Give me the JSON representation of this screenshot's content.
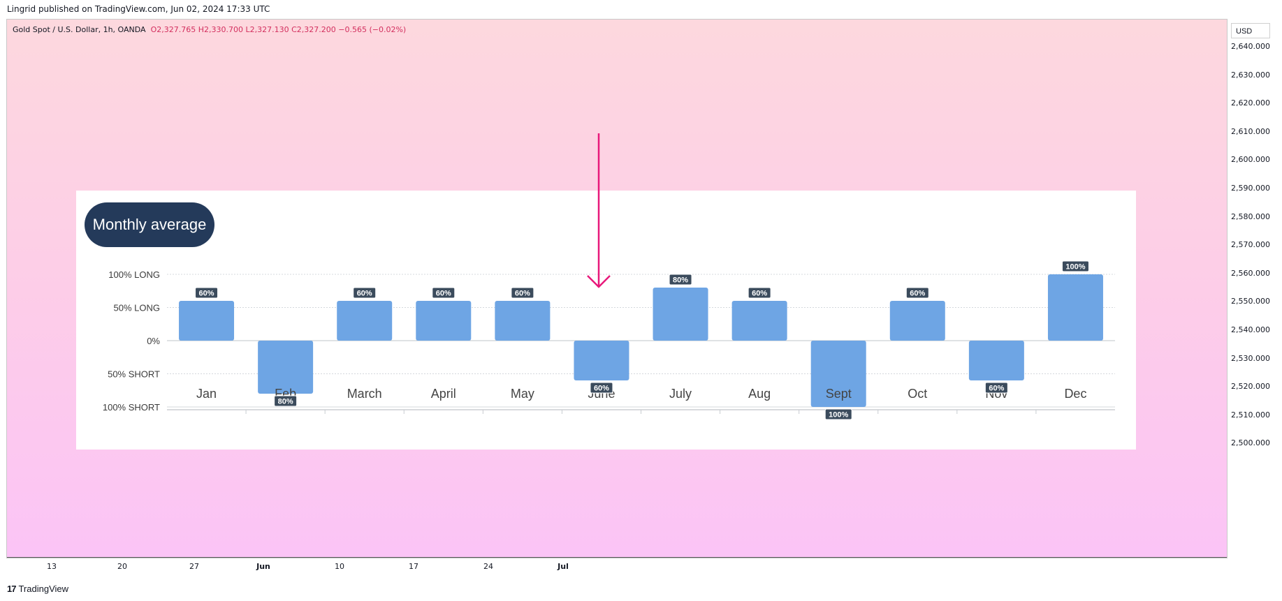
{
  "header": {
    "published": "Lingrid published on TradingView.com, Jun 02, 2024 17:33 UTC"
  },
  "legend": {
    "symbol": "Gold Spot / U.S. Dollar, 1h, OANDA",
    "ohlc": "O2,327.765  H2,330.700  L2,327.130  C2,327.200  −0.565 (−0.02%)"
  },
  "price_axis": {
    "currency": "USD",
    "labels": [
      "2,640.000",
      "2,630.000",
      "2,620.000",
      "2,610.000",
      "2,600.000",
      "2,590.000",
      "2,580.000",
      "2,570.000",
      "2,560.000",
      "2,550.000",
      "2,540.000",
      "2,530.000",
      "2,520.000",
      "2,510.000",
      "2,500.000"
    ]
  },
  "time_axis": {
    "labels": [
      {
        "text": "13",
        "bold": false
      },
      {
        "text": "20",
        "bold": false
      },
      {
        "text": "27",
        "bold": false
      },
      {
        "text": "Jun",
        "bold": true
      },
      {
        "text": "10",
        "bold": false
      },
      {
        "text": "17",
        "bold": false
      },
      {
        "text": "24",
        "bold": false
      },
      {
        "text": "Jul",
        "bold": true
      }
    ]
  },
  "footer": {
    "brand": "TradingView",
    "logo": "17"
  },
  "colors": {
    "bar": "#6ea5e4",
    "arrow": "#e8187a",
    "pill": "#243a5a",
    "badge": "#3b4b5c"
  },
  "chart_data": {
    "type": "bar",
    "title": "Monthly average",
    "categories": [
      "Jan",
      "Feb",
      "March",
      "April",
      "May",
      "June",
      "July",
      "Aug",
      "Sept",
      "Oct",
      "Nov",
      "Dec"
    ],
    "values": [
      60,
      -80,
      60,
      60,
      60,
      -60,
      80,
      60,
      -100,
      60,
      -60,
      100
    ],
    "labels": [
      "60%",
      "80%",
      "60%",
      "60%",
      "60%",
      "60%",
      "80%",
      "60%",
      "100%",
      "60%",
      "60%",
      "100%"
    ],
    "yticks": [
      {
        "value": 100,
        "label": "100% LONG"
      },
      {
        "value": 50,
        "label": "50% LONG"
      },
      {
        "value": 0,
        "label": "0%"
      },
      {
        "value": -50,
        "label": "50% SHORT"
      },
      {
        "value": -100,
        "label": "100% SHORT"
      }
    ],
    "ylim": [
      -100,
      100
    ],
    "annotation": "down-arrow above June"
  }
}
